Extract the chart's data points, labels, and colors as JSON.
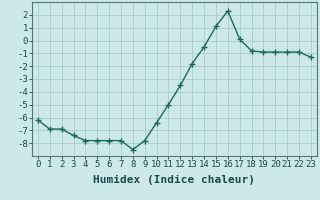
{
  "x": [
    0,
    1,
    2,
    3,
    4,
    5,
    6,
    7,
    8,
    9,
    10,
    11,
    12,
    13,
    14,
    15,
    16,
    17,
    18,
    19,
    20,
    21,
    22,
    23
  ],
  "y": [
    -6.2,
    -6.9,
    -6.9,
    -7.4,
    -7.8,
    -7.8,
    -7.8,
    -7.8,
    -8.5,
    -7.8,
    -6.4,
    -5.0,
    -3.5,
    -1.8,
    -0.5,
    1.1,
    2.3,
    0.1,
    -0.8,
    -0.9,
    -0.9,
    -0.9,
    -0.9,
    -1.3
  ],
  "line_color": "#1a6b5a",
  "marker": "+",
  "marker_size": 4,
  "bg_color": "#cce8e8",
  "grid_color": "#aacccc",
  "xlabel": "Humidex (Indice chaleur)",
  "ylim": [
    -9,
    3
  ],
  "xlim": [
    -0.5,
    23.5
  ],
  "yticks": [
    -8,
    -7,
    -6,
    -5,
    -4,
    -3,
    -2,
    -1,
    0,
    1,
    2
  ],
  "xtick_labels": [
    "0",
    "1",
    "2",
    "3",
    "4",
    "5",
    "6",
    "7",
    "8",
    "9",
    "10",
    "11",
    "12",
    "13",
    "14",
    "15",
    "16",
    "17",
    "18",
    "19",
    "20",
    "21",
    "22",
    "23"
  ],
  "xlabel_fontsize": 8,
  "tick_fontsize": 6.5,
  "line_width": 1.0
}
